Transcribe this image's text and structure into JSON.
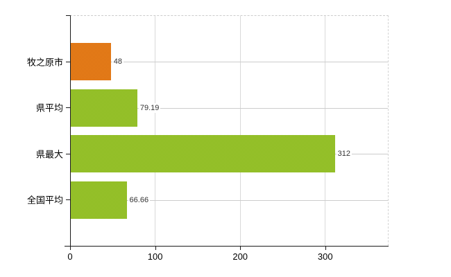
{
  "chart_data": {
    "type": "bar",
    "orientation": "horizontal",
    "title": "",
    "xlabel": "",
    "ylabel": "",
    "categories": [
      "牧之原市",
      "県平均",
      "県最大",
      "全国平均"
    ],
    "values": [
      48,
      79.19,
      312,
      66.66
    ],
    "value_labels": [
      "48",
      "79.19",
      "312",
      "66.66"
    ],
    "bar_colors": [
      "#e8811c",
      "#9cc62f",
      "#9cc62f",
      "#9cc62f"
    ],
    "bar_colors_shade": [
      "#db7012",
      "#8bb822",
      "#8bb822",
      "#8bb822"
    ],
    "xlim": [
      0,
      374.4
    ],
    "x_ticks": [
      0,
      100,
      200,
      300
    ],
    "x_tick_labels": [
      "0",
      "100",
      "200",
      "300"
    ],
    "grid": "on",
    "legend": "none"
  },
  "colors": {
    "background": "#ffffff",
    "axis": "#1a1a1a",
    "gridline_h": "#cccccc",
    "gridline_v": "#d9d9d9",
    "plot_border_dashed": "#cccccc",
    "highlight_bar": "#e8811c",
    "default_bar": "#9cc62f",
    "value_text": "#333333",
    "category_text": "#000000"
  }
}
